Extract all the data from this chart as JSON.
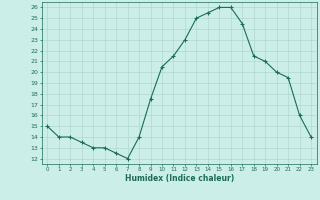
{
  "x": [
    0,
    1,
    2,
    3,
    4,
    5,
    6,
    7,
    8,
    9,
    10,
    11,
    12,
    13,
    14,
    15,
    16,
    17,
    18,
    19,
    20,
    21,
    22,
    23
  ],
  "y": [
    15,
    14,
    14,
    13.5,
    13,
    13,
    12.5,
    12,
    14,
    17.5,
    20.5,
    21.5,
    23,
    25,
    25.5,
    26,
    26,
    24.5,
    21.5,
    21,
    20,
    19.5,
    16,
    14
  ],
  "xlabel": "Humidex (Indice chaleur)",
  "xlim": [
    -0.5,
    23.5
  ],
  "ylim": [
    11.5,
    26.5
  ],
  "yticks": [
    12,
    13,
    14,
    15,
    16,
    17,
    18,
    19,
    20,
    21,
    22,
    23,
    24,
    25,
    26
  ],
  "xticks": [
    0,
    1,
    2,
    3,
    4,
    5,
    6,
    7,
    8,
    9,
    10,
    11,
    12,
    13,
    14,
    15,
    16,
    17,
    18,
    19,
    20,
    21,
    22,
    23
  ],
  "line_color": "#1a6b5a",
  "marker": "+",
  "bg_color": "#cceee8",
  "grid_color": "#b0d8d0",
  "xlabel_color": "#1a6b5a",
  "tick_color": "#1a6b5a",
  "spine_color": "#1a6b5a"
}
